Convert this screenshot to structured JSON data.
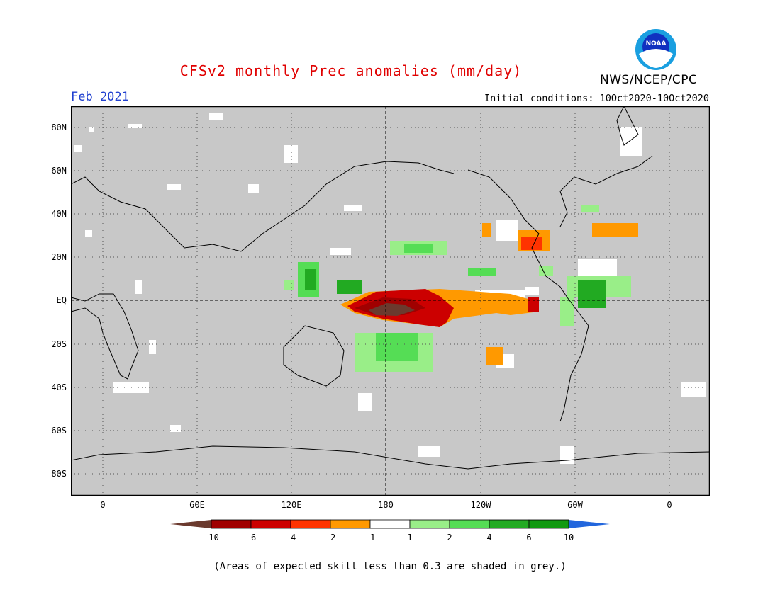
{
  "title": "CFSv2 monthly Prec anomalies (mm/day)",
  "month": "Feb 2021",
  "initial_conditions": "Initial conditions: 10Oct2020-10Oct2020",
  "agency": "NWS/NCEP/CPC",
  "logo_text": "NOAA",
  "lat_labels": [
    "80N",
    "60N",
    "40N",
    "20N",
    "EQ",
    "20S",
    "40S",
    "60S",
    "80S"
  ],
  "lon_labels": [
    "0",
    "60E",
    "120E",
    "180",
    "120W",
    "60W",
    "0"
  ],
  "colorbar": {
    "ticks": [
      "-10",
      "-6",
      "-4",
      "-2",
      "-1",
      "1",
      "2",
      "4",
      "6",
      "10"
    ],
    "colors": [
      "#6b3a2e",
      "#a00000",
      "#cc0000",
      "#ff3300",
      "#ff9900",
      "#ffffff",
      "#99ee88",
      "#55dd55",
      "#22aa22",
      "#119911"
    ],
    "low_color": "#6b3a2e",
    "high_color": "#2266dd"
  },
  "footnote": "(Areas of expected skill less than 0.3 are shaded in grey.)",
  "colors": {
    "grey": "#c8c8c8",
    "title": "#e00000",
    "month": "#2040d0"
  }
}
